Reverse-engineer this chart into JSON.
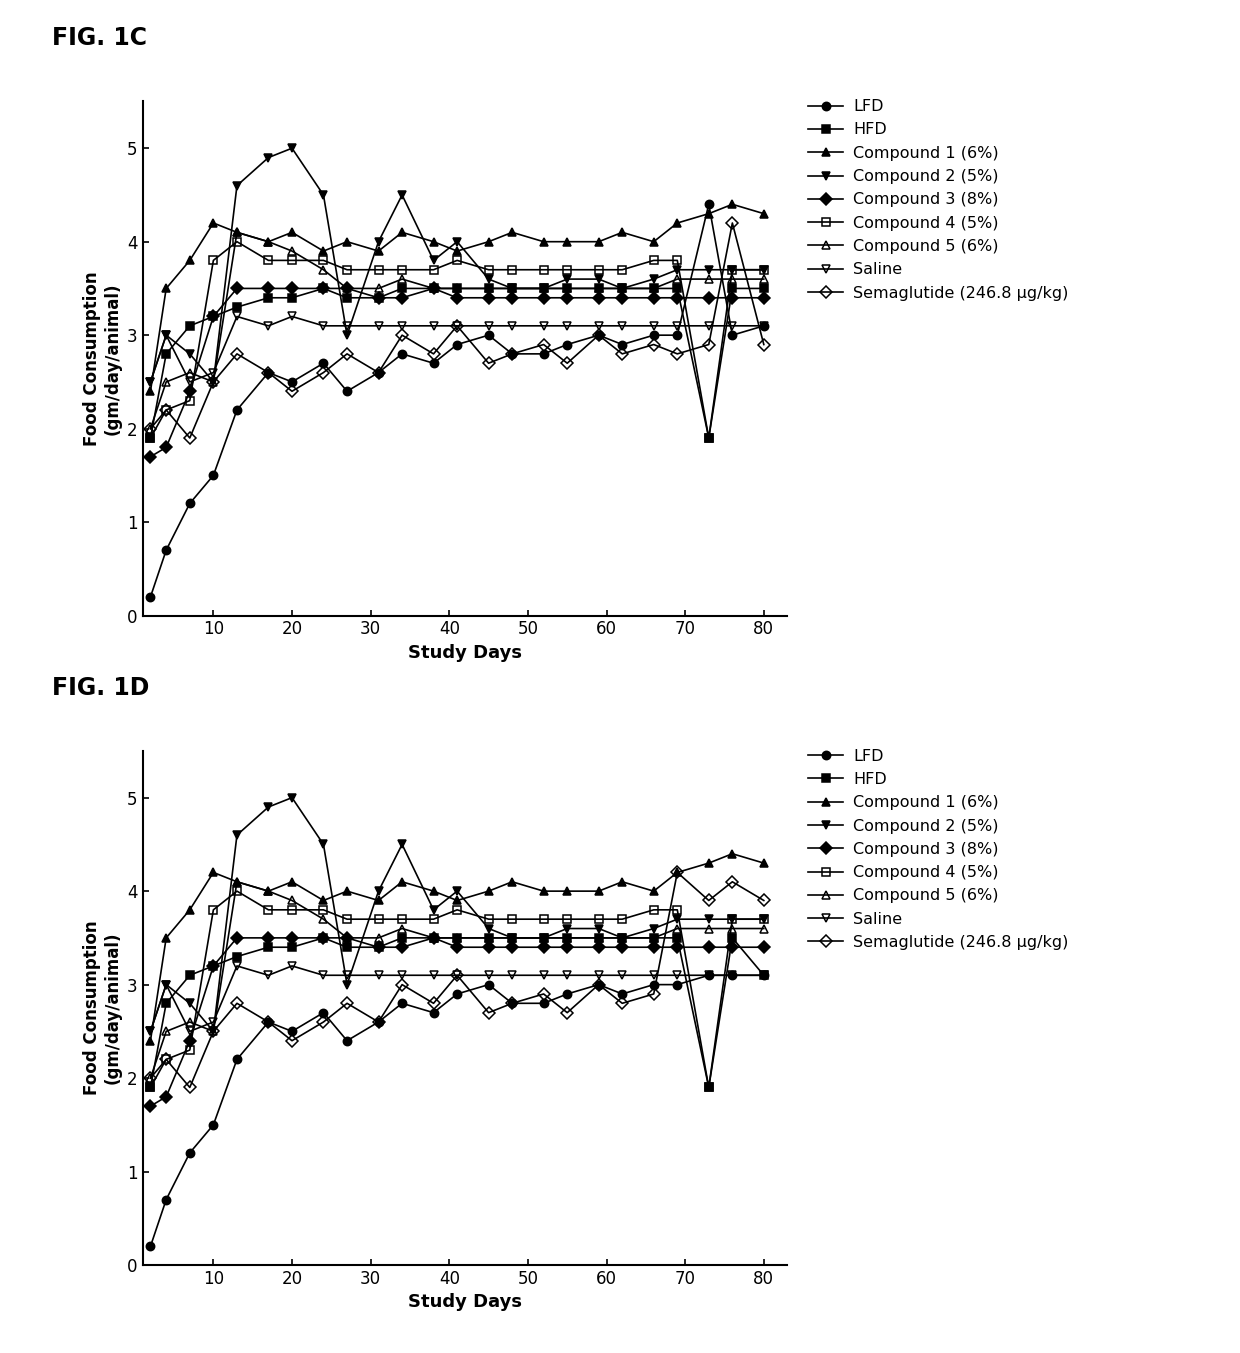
{
  "fig_title_1": "FIG. 1C",
  "fig_title_2": "FIG. 1D",
  "ylabel": "Food Consumption\n(gm/day/animal)",
  "xlabel": "Study Days",
  "ylim": [
    0,
    5.5
  ],
  "xlim": [
    1,
    83
  ],
  "yticks": [
    0,
    1,
    2,
    3,
    4,
    5
  ],
  "xticks": [
    10,
    20,
    30,
    40,
    50,
    60,
    70,
    80
  ],
  "legend_labels": [
    "LFD",
    "HFD",
    "Compound 1 (6%)",
    "Compound 2 (5%)",
    "Compound 3 (8%)",
    "Compound 4 (5%)",
    "Compound 5 (6%)",
    "Saline",
    "Semaglutide (246.8 μg/kg)"
  ],
  "marker_props": {
    "LFD": {
      "marker": "o",
      "fillstyle": "full"
    },
    "HFD": {
      "marker": "s",
      "fillstyle": "full"
    },
    "Compound 1 (6%)": {
      "marker": "^",
      "fillstyle": "full"
    },
    "Compound 2 (5%)": {
      "marker": "v",
      "fillstyle": "full"
    },
    "Compound 3 (8%)": {
      "marker": "D",
      "fillstyle": "full"
    },
    "Compound 4 (5%)": {
      "marker": "s",
      "fillstyle": "none"
    },
    "Compound 5 (6%)": {
      "marker": "^",
      "fillstyle": "none"
    },
    "Saline": {
      "marker": "v",
      "fillstyle": "none"
    },
    "Semaglutide (246.8 μg/kg)": {
      "marker": "D",
      "fillstyle": "none"
    }
  },
  "color": "#000000",
  "linewidth": 1.2,
  "markersize": 6,
  "x_days": [
    2,
    4,
    7,
    10,
    13,
    17,
    20,
    24,
    27,
    31,
    34,
    38,
    41,
    45,
    48,
    52,
    55,
    59,
    62,
    66,
    69,
    73,
    76,
    80
  ],
  "series_1C": {
    "LFD": [
      0.2,
      0.7,
      1.2,
      1.5,
      2.2,
      2.6,
      2.5,
      2.7,
      2.4,
      2.6,
      2.8,
      2.7,
      2.9,
      3.0,
      2.8,
      2.8,
      2.9,
      3.0,
      2.9,
      3.0,
      3.0,
      4.4,
      3.0,
      3.1
    ],
    "HFD": [
      1.9,
      2.8,
      3.1,
      3.2,
      3.3,
      3.4,
      3.4,
      3.5,
      3.4,
      3.4,
      3.5,
      3.5,
      3.5,
      3.5,
      3.5,
      3.5,
      3.5,
      3.5,
      3.5,
      3.5,
      3.5,
      1.9,
      3.5,
      3.5
    ],
    "Compound 1 (6%)": [
      2.4,
      3.5,
      3.8,
      4.2,
      4.1,
      4.0,
      4.1,
      3.9,
      4.0,
      3.9,
      4.1,
      4.0,
      3.9,
      4.0,
      4.1,
      4.0,
      4.0,
      4.0,
      4.1,
      4.0,
      4.2,
      4.3,
      4.4,
      4.3
    ],
    "Compound 2 (5%)": [
      2.5,
      3.0,
      2.8,
      2.5,
      4.6,
      4.9,
      5.0,
      4.5,
      3.0,
      4.0,
      4.5,
      3.8,
      4.0,
      3.6,
      3.5,
      3.5,
      3.6,
      3.6,
      3.5,
      3.6,
      3.7,
      3.7,
      3.7,
      3.7
    ],
    "Compound 3 (8%)": [
      1.7,
      1.8,
      2.4,
      3.2,
      3.5,
      3.5,
      3.5,
      3.5,
      3.5,
      3.4,
      3.4,
      3.5,
      3.4,
      3.4,
      3.4,
      3.4,
      3.4,
      3.4,
      3.4,
      3.4,
      3.4,
      3.4,
      3.4,
      3.4
    ],
    "Compound 4 (5%)": [
      1.9,
      2.2,
      2.3,
      3.8,
      4.0,
      3.8,
      3.8,
      3.8,
      3.7,
      3.7,
      3.7,
      3.7,
      3.8,
      3.7,
      3.7,
      3.7,
      3.7,
      3.7,
      3.7,
      3.8,
      3.8,
      1.9,
      3.7,
      3.7
    ],
    "Compound 5 (6%)": [
      2.0,
      2.5,
      2.6,
      2.5,
      4.1,
      4.0,
      3.9,
      3.7,
      3.5,
      3.5,
      3.6,
      3.5,
      3.5,
      3.5,
      3.5,
      3.5,
      3.5,
      3.5,
      3.5,
      3.5,
      3.6,
      3.6,
      3.6,
      3.6
    ],
    "Saline": [
      2.5,
      3.0,
      2.5,
      2.6,
      3.2,
      3.1,
      3.2,
      3.1,
      3.1,
      3.1,
      3.1,
      3.1,
      3.1,
      3.1,
      3.1,
      3.1,
      3.1,
      3.1,
      3.1,
      3.1,
      3.1,
      3.1,
      3.1,
      3.1
    ],
    "Semaglutide (246.8 μg/kg)": [
      2.0,
      2.2,
      1.9,
      2.5,
      2.8,
      2.6,
      2.4,
      2.6,
      2.8,
      2.6,
      3.0,
      2.8,
      3.1,
      2.7,
      2.8,
      2.9,
      2.7,
      3.0,
      2.8,
      2.9,
      2.8,
      2.9,
      4.2,
      2.9
    ]
  },
  "series_1D": {
    "LFD": [
      0.2,
      0.7,
      1.2,
      1.5,
      2.2,
      2.6,
      2.5,
      2.7,
      2.4,
      2.6,
      2.8,
      2.7,
      2.9,
      3.0,
      2.8,
      2.8,
      2.9,
      3.0,
      2.9,
      3.0,
      3.0,
      3.1,
      3.1,
      3.1
    ],
    "HFD": [
      1.9,
      2.8,
      3.1,
      3.2,
      3.3,
      3.4,
      3.4,
      3.5,
      3.4,
      3.4,
      3.5,
      3.5,
      3.5,
      3.5,
      3.5,
      3.5,
      3.5,
      3.5,
      3.5,
      3.5,
      3.5,
      1.9,
      3.5,
      3.1
    ],
    "Compound 1 (6%)": [
      2.4,
      3.5,
      3.8,
      4.2,
      4.1,
      4.0,
      4.1,
      3.9,
      4.0,
      3.9,
      4.1,
      4.0,
      3.9,
      4.0,
      4.1,
      4.0,
      4.0,
      4.0,
      4.1,
      4.0,
      4.2,
      4.3,
      4.4,
      4.3
    ],
    "Compound 2 (5%)": [
      2.5,
      3.0,
      2.8,
      2.5,
      4.6,
      4.9,
      5.0,
      4.5,
      3.0,
      4.0,
      4.5,
      3.8,
      4.0,
      3.6,
      3.5,
      3.5,
      3.6,
      3.6,
      3.5,
      3.6,
      3.7,
      3.7,
      3.7,
      3.7
    ],
    "Compound 3 (8%)": [
      1.7,
      1.8,
      2.4,
      3.2,
      3.5,
      3.5,
      3.5,
      3.5,
      3.5,
      3.4,
      3.4,
      3.5,
      3.4,
      3.4,
      3.4,
      3.4,
      3.4,
      3.4,
      3.4,
      3.4,
      3.4,
      3.4,
      3.4,
      3.4
    ],
    "Compound 4 (5%)": [
      1.9,
      2.2,
      2.3,
      3.8,
      4.0,
      3.8,
      3.8,
      3.8,
      3.7,
      3.7,
      3.7,
      3.7,
      3.8,
      3.7,
      3.7,
      3.7,
      3.7,
      3.7,
      3.7,
      3.8,
      3.8,
      1.9,
      3.7,
      3.7
    ],
    "Compound 5 (6%)": [
      2.0,
      2.5,
      2.6,
      2.5,
      4.1,
      4.0,
      3.9,
      3.7,
      3.5,
      3.5,
      3.6,
      3.5,
      3.5,
      3.5,
      3.5,
      3.5,
      3.5,
      3.5,
      3.5,
      3.5,
      3.6,
      3.6,
      3.6,
      3.6
    ],
    "Saline": [
      2.5,
      3.0,
      2.5,
      2.6,
      3.2,
      3.1,
      3.2,
      3.1,
      3.1,
      3.1,
      3.1,
      3.1,
      3.1,
      3.1,
      3.1,
      3.1,
      3.1,
      3.1,
      3.1,
      3.1,
      3.1,
      3.1,
      3.1,
      3.1
    ],
    "Semaglutide (246.8 μg/kg)": [
      2.0,
      2.2,
      1.9,
      2.5,
      2.8,
      2.6,
      2.4,
      2.6,
      2.8,
      2.6,
      3.0,
      2.8,
      3.1,
      2.7,
      2.8,
      2.9,
      2.7,
      3.0,
      2.8,
      2.9,
      4.2,
      3.9,
      4.1,
      3.9
    ]
  }
}
